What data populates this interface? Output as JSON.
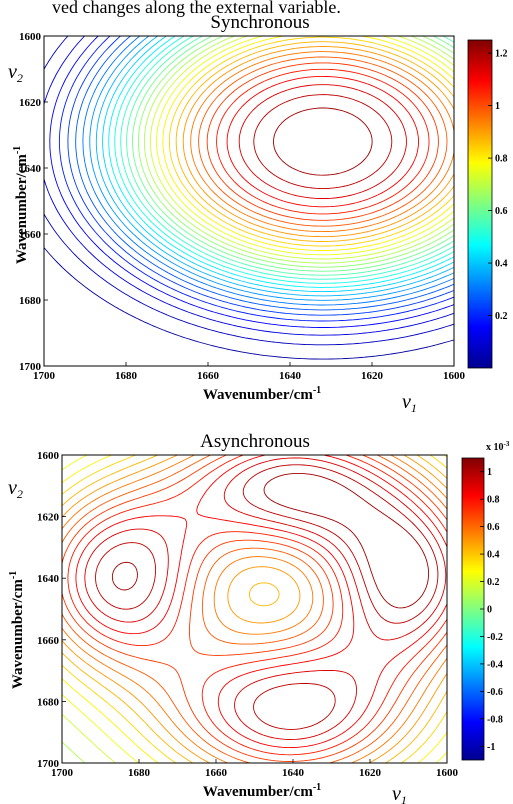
{
  "caption": "ved changes along the external variable.",
  "chart_data": [
    {
      "type": "contour",
      "title": "Synchronous",
      "xlabel": "Wavenumber/cm",
      "xlabel_sup": "-1",
      "ylabel": "Wavenumber/cm",
      "ylabel_sup": "-1",
      "x_corner_label": "v",
      "x_corner_sub": "1",
      "y_corner_label": "v",
      "y_corner_sub": "2",
      "xlim": [
        1700,
        1600
      ],
      "ylim": [
        1600,
        1700
      ],
      "xticks": [
        "1700",
        "1680",
        "1660",
        "1640",
        "1620",
        "1600"
      ],
      "yticks": [
        "1600",
        "1620",
        "1640",
        "1660",
        "1680",
        "1700"
      ],
      "colorbar": {
        "min": 0,
        "max": 1.25,
        "ticks": [
          "1.2",
          "1",
          "0.8",
          "0.6",
          "0.4",
          "0.2"
        ],
        "tick_values": [
          1.2,
          1.0,
          0.8,
          0.6,
          0.4,
          0.2
        ],
        "exponent": ""
      },
      "peaks": [
        {
          "x": 1632,
          "y": 1632,
          "value": 1.25,
          "sign": "positive"
        }
      ],
      "levels": 32
    },
    {
      "type": "contour",
      "title": "Asynchronous",
      "xlabel": "Wavenumber/cm",
      "xlabel_sup": "-1",
      "ylabel": "Wavenumber/cm",
      "ylabel_sup": "-1",
      "x_corner_label": "v",
      "x_corner_sub": "1",
      "y_corner_label": "v",
      "y_corner_sub": "2",
      "xlim": [
        1700,
        1600
      ],
      "ylim": [
        1600,
        1700
      ],
      "xticks": [
        "1700",
        "1680",
        "1660",
        "1640",
        "1620",
        "1600"
      ],
      "yticks": [
        "1600",
        "1620",
        "1640",
        "1660",
        "1680",
        "1700"
      ],
      "colorbar": {
        "min": -1.1,
        "max": 1.1,
        "ticks": [
          "1",
          "0.8",
          "0.6",
          "0.4",
          "0.2",
          "0",
          "-0.2",
          "-0.4",
          "-0.6",
          "-0.8",
          "-1"
        ],
        "tick_values": [
          1,
          0.8,
          0.6,
          0.4,
          0.2,
          0,
          -0.2,
          -0.4,
          -0.6,
          -0.8,
          -1
        ],
        "exponent": "x 10",
        "exponent_sup": "-3"
      },
      "peaks": [
        {
          "x": 1685,
          "y": 1640,
          "value": 1.0,
          "sign": "positive"
        },
        {
          "x": 1610,
          "y": 1640,
          "value": 1.0,
          "sign": "positive"
        },
        {
          "x": 1641,
          "y": 1610,
          "value": -1.0,
          "sign": "negative"
        },
        {
          "x": 1641,
          "y": 1683,
          "value": -1.0,
          "sign": "negative"
        }
      ],
      "levels": 32
    }
  ]
}
